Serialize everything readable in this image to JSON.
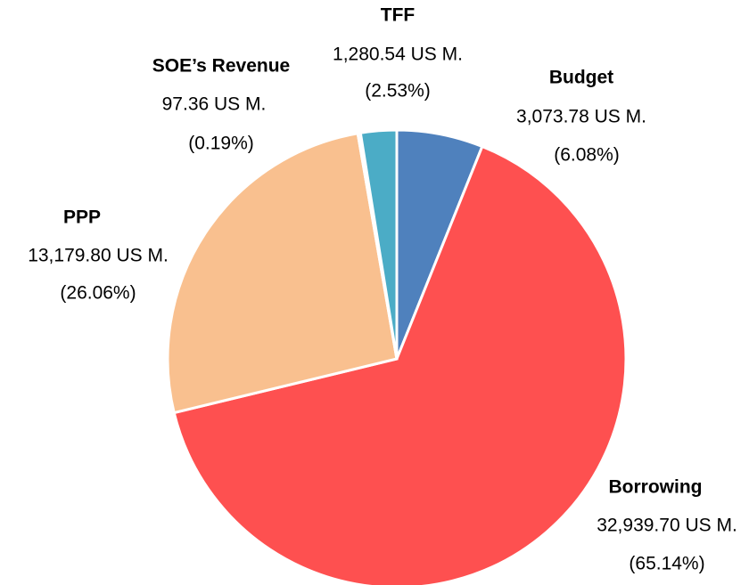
{
  "chart_data": {
    "type": "pie",
    "categories": [
      "Budget",
      "Borrowing",
      "PPP",
      "SOE’s Revenue",
      "TFF"
    ],
    "values": [
      3073.78,
      32939.7,
      13179.8,
      97.36,
      1280.54
    ],
    "value_labels": [
      "3,073.78 US M.",
      "32,939.70 US M.",
      "13,179.80 US M.",
      "97.36 US M.",
      "1,280.54 US M."
    ],
    "percentages": [
      6.08,
      65.14,
      26.06,
      0.19,
      2.53
    ],
    "percentage_labels": [
      "(6.08%)",
      "(65.14%)",
      "(26.06%)",
      "(0.19%)",
      "(2.53%)"
    ],
    "colors": [
      "#4f81bd",
      "#fe5050",
      "#f9c08f",
      "#b9a8e8",
      "#4bacc6"
    ]
  }
}
